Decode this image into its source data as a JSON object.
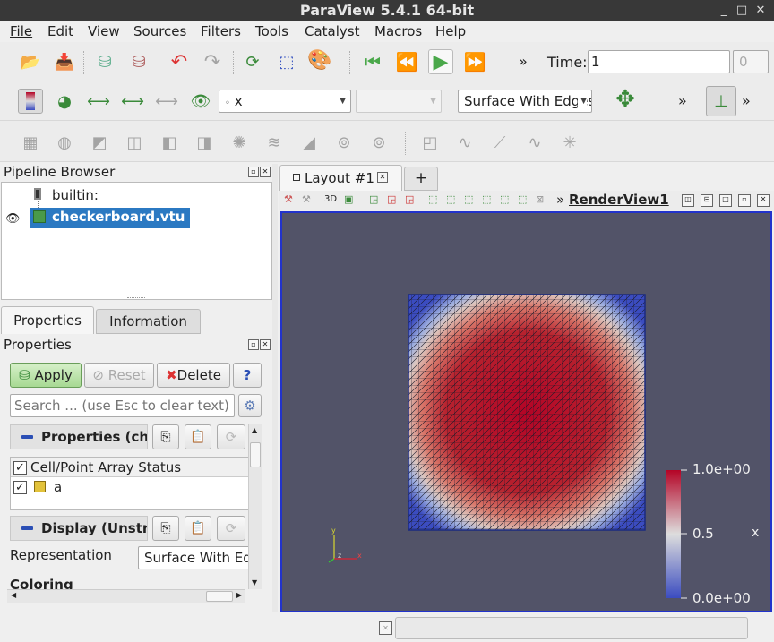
{
  "window": {
    "title": "ParaView 5.4.1 64-bit",
    "min": "_",
    "max": "□",
    "close": "✕"
  },
  "menu": [
    "File",
    "Edit",
    "View",
    "Sources",
    "Filters",
    "Tools",
    "Catalyst",
    "Macros",
    "Help"
  ],
  "toolbar1": {
    "overflow": "»",
    "time_label": "Time:",
    "time_value": "1",
    "time_index": "0"
  },
  "toolbar2": {
    "array_combo": "x",
    "component_combo": "",
    "representation_combo": "Surface With Edges",
    "overflow1": "»",
    "overflow2": "»"
  },
  "pipeline": {
    "title": "Pipeline Browser",
    "items": [
      "builtin:",
      "checkerboard.vtu"
    ]
  },
  "tabs": {
    "properties": "Properties",
    "information": "Information"
  },
  "properties": {
    "title": "Properties",
    "apply": "Apply",
    "reset": "Reset",
    "delete": "Delete",
    "help": "?",
    "search_placeholder": "Search ... (use Esc to clear text)",
    "section_properties": "Properties (checkerboard.vtu)",
    "array_status_header": "Cell/Point Array Status",
    "array_a": "a",
    "section_display": "Display (UnstructuredGridRepresentation)",
    "representation_label": "Representation",
    "representation_value": "Surface With Edges",
    "coloring_label": "Coloring"
  },
  "layout": {
    "tab": "Layout #1",
    "add_tab": "+",
    "toolbar_3d": "3D",
    "overflow": "»",
    "view_name": "RenderView1"
  },
  "colorbar": {
    "max": "1.0e+00",
    "mid": "0.5",
    "min": "0.0e+00",
    "title": "x"
  },
  "axes": {
    "x": "x",
    "y": "y",
    "z": "z"
  },
  "colors": {
    "render_bg": "#525368",
    "mesh_low": "#3b4cc0",
    "mesh_mid": "#dddddd",
    "mesh_high": "#b40426",
    "select": "#2b79c2"
  }
}
